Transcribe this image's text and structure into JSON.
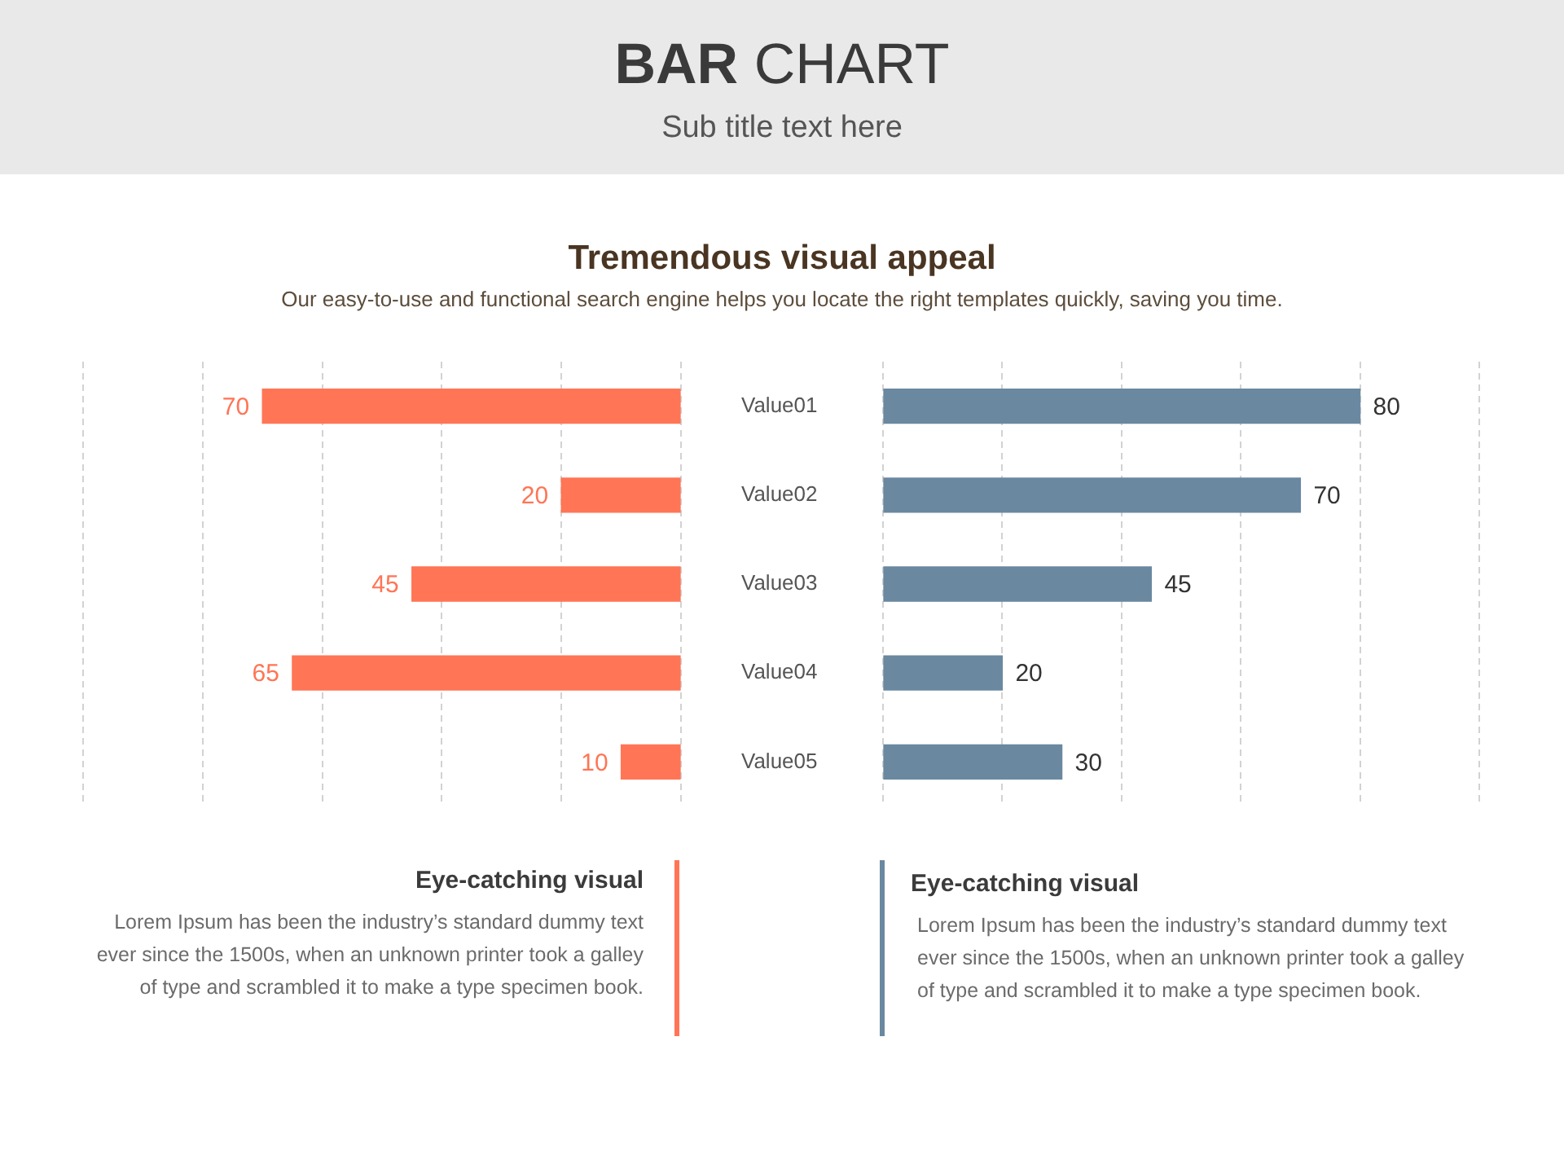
{
  "chart_data": [
    {
      "type": "bar",
      "orientation": "horizontal",
      "title": "BAR CHART",
      "subtitle": "Sub title text here",
      "categories": [
        "Value01",
        "Value02",
        "Value03",
        "Value04",
        "Value05"
      ],
      "values": [
        70,
        20,
        45,
        65,
        10
      ],
      "color": "#ff7555",
      "xlim": [
        100,
        0
      ],
      "xticks": [
        {
          "value": 100,
          "label": null
        },
        {
          "value": 80,
          "label": null
        },
        {
          "value": 60,
          "label": null
        },
        {
          "value": 40,
          "label": null
        },
        {
          "value": 20,
          "label": null
        },
        {
          "value": 0,
          "label": null
        }
      ],
      "grid": "x",
      "tick_labels": "y",
      "data_labels": true,
      "annotations": [
        "Tremendous visual appeal",
        "Our easy-to-use and functional search engine helps you locate the right templates quickly, saving you time.",
        "Eye-catching visual",
        "Lorem Ipsum has been the industry’s standard dummy text ever since the 1500s, when an unknown printer took a galley of type and scrambled it to make a type specimen book."
      ]
    },
    {
      "type": "bar",
      "orientation": "horizontal",
      "categories": [
        null,
        null,
        null,
        null,
        null
      ],
      "values": [
        80,
        70,
        45,
        20,
        30
      ],
      "color": "#6a88a0",
      "xlim": [
        0,
        100
      ],
      "xticks": [
        {
          "value": 0,
          "label": null
        },
        {
          "value": 20,
          "label": null
        },
        {
          "value": 40,
          "label": null
        },
        {
          "value": 60,
          "label": null
        },
        {
          "value": 80,
          "label": null
        },
        {
          "value": 100,
          "label": null
        }
      ],
      "grid": "x",
      "tick_labels": false,
      "data_labels": true,
      "annotations": [
        "Eye-catching visual",
        "Lorem Ipsum has been the industry’s standard dummy text ever since the 1500s, when an unknown printer took a galley of type and scrambled it to make a type specimen book."
      ]
    }
  ]
}
